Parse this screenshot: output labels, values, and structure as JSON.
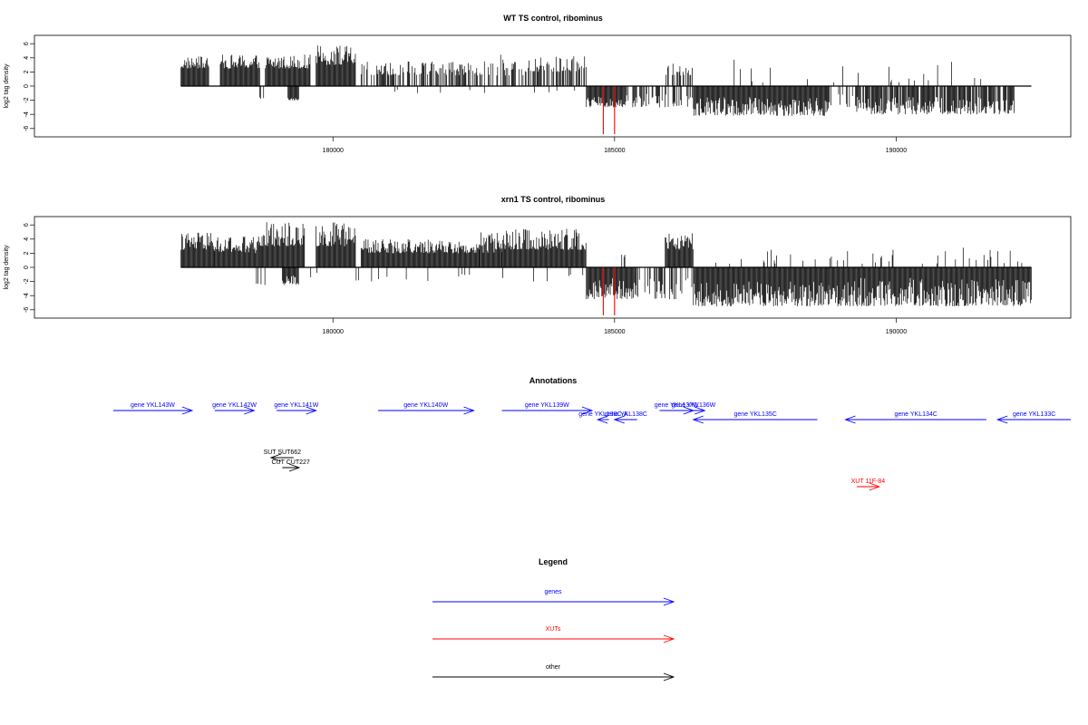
{
  "colors": {
    "genes": "#0000ff",
    "xuts": "#ff0000",
    "other": "#000000",
    "trace": "#000000",
    "highlight": "#ff0000"
  },
  "chart_data": [
    {
      "type": "bar",
      "title": "WT TS control, ribominus",
      "ylabel": "log2 tag density",
      "xticks": [
        180000,
        185000,
        190000
      ],
      "yticks": [
        -6,
        -4,
        -2,
        0,
        2,
        4,
        6
      ],
      "xlim": [
        174700,
        193100
      ],
      "ylim": [
        -7.5,
        7
      ],
      "grid": false,
      "positive_segments": [
        {
          "x": [
            177300,
            177800
          ],
          "y": [
            2.5,
            4.2
          ],
          "d": 1.2
        },
        {
          "x": [
            178000,
            178700
          ],
          "y": [
            2.5,
            4.5
          ],
          "d": 1.0
        },
        {
          "x": [
            178800,
            179600
          ],
          "y": [
            2.5,
            4.5
          ],
          "d": 1.0
        },
        {
          "x": [
            179700,
            180400
          ],
          "y": [
            3.0,
            5.8
          ],
          "d": 1.8
        },
        {
          "x": [
            180500,
            182800
          ],
          "y": [
            1.5,
            3.5
          ],
          "d": 0.6
        },
        {
          "x": [
            182800,
            183400
          ],
          "y": [
            1.5,
            4.8
          ],
          "d": 0.5
        },
        {
          "x": [
            183400,
            184500
          ],
          "y": [
            2.0,
            4.3
          ],
          "d": 0.6
        },
        {
          "x": [
            185900,
            186400
          ],
          "y": [
            1.5,
            3.2
          ],
          "d": 0.4
        },
        {
          "x": [
            187000,
            191600
          ],
          "y": [
            0.5,
            3.8
          ],
          "d": 0.05
        }
      ],
      "negative_segments": [
        {
          "x": [
            178700,
            178800
          ],
          "y": [
            -1.8,
            -1.5
          ],
          "d": 0.5
        },
        {
          "x": [
            179200,
            179400
          ],
          "y": [
            -2.0,
            -1.5
          ],
          "d": 1.0
        },
        {
          "x": [
            180500,
            184500
          ],
          "y": [
            -1.0,
            -0.5
          ],
          "d": 0.03
        },
        {
          "x": [
            184500,
            185200
          ],
          "y": [
            -3.0,
            -1.5
          ],
          "d": 1.0
        },
        {
          "x": [
            185200,
            186400
          ],
          "y": [
            -3.0,
            -1.0
          ],
          "d": 0.5
        },
        {
          "x": [
            186400,
            188800
          ],
          "y": [
            -4.2,
            -1.5
          ],
          "d": 1.0
        },
        {
          "x": [
            188800,
            189300
          ],
          "y": [
            -3.0,
            -1.0
          ],
          "d": 0.3
        },
        {
          "x": [
            189300,
            192100
          ],
          "y": [
            -4.0,
            -1.5
          ],
          "d": 0.8
        }
      ],
      "highlight_bars": [
        {
          "x": 184800,
          "y": -6.8
        },
        {
          "x": 185000,
          "y": -6.8
        }
      ],
      "baseline_x": [
        177300,
        192400
      ]
    },
    {
      "type": "bar",
      "title": "xrn1 TS control, ribominus",
      "ylabel": "log2 tag density",
      "xticks": [
        180000,
        185000,
        190000
      ],
      "yticks": [
        -6,
        -4,
        -2,
        0,
        2,
        4,
        6
      ],
      "xlim": [
        174700,
        193100
      ],
      "ylim": [
        -7.5,
        7
      ],
      "grid": false,
      "positive_segments": [
        {
          "x": [
            177300,
            177900
          ],
          "y": [
            2.5,
            5.0
          ],
          "d": 2.0
        },
        {
          "x": [
            177900,
            178700
          ],
          "y": [
            2.0,
            4.5
          ],
          "d": 1.0
        },
        {
          "x": [
            178700,
            179500
          ],
          "y": [
            3.0,
            6.5
          ],
          "d": 3.0
        },
        {
          "x": [
            179700,
            180400
          ],
          "y": [
            3.0,
            6.5
          ],
          "d": 3.0
        },
        {
          "x": [
            180500,
            182600
          ],
          "y": [
            2.0,
            4.0
          ],
          "d": 1.0
        },
        {
          "x": [
            182600,
            183000
          ],
          "y": [
            2.0,
            5.0
          ],
          "d": 2.0
        },
        {
          "x": [
            183000,
            184500
          ],
          "y": [
            2.5,
            5.5
          ],
          "d": 1.5
        },
        {
          "x": [
            185100,
            185200
          ],
          "y": [
            1.5,
            1.8
          ],
          "d": 0.3
        },
        {
          "x": [
            185900,
            186400
          ],
          "y": [
            2.5,
            5.0
          ],
          "d": 2.0
        },
        {
          "x": [
            186400,
            192300
          ],
          "y": [
            0.5,
            3.0
          ],
          "d": 0.1
        }
      ],
      "negative_segments": [
        {
          "x": [
            178600,
            178800
          ],
          "y": [
            -2.5,
            -2.0
          ],
          "d": 0.3
        },
        {
          "x": [
            179100,
            179400
          ],
          "y": [
            -2.5,
            -1.0
          ],
          "d": 1.5
        },
        {
          "x": [
            179400,
            184500
          ],
          "y": [
            -2.0,
            -0.5
          ],
          "d": 0.05
        },
        {
          "x": [
            184500,
            185400
          ],
          "y": [
            -4.5,
            -1.5
          ],
          "d": 2.0
        },
        {
          "x": [
            185400,
            186400
          ],
          "y": [
            -4.5,
            -1.5
          ],
          "d": 0.5
        },
        {
          "x": [
            186400,
            188800
          ],
          "y": [
            -5.5,
            -2.0
          ],
          "d": 3.0
        },
        {
          "x": [
            188800,
            192400
          ],
          "y": [
            -5.5,
            -1.5
          ],
          "d": 1.2
        }
      ],
      "highlight_bars": [
        {
          "x": 184800,
          "y": -6.8
        },
        {
          "x": 185000,
          "y": -6.8
        }
      ],
      "baseline_x": [
        177300,
        192400
      ]
    }
  ],
  "annotations": {
    "title": "Annotations",
    "items": [
      {
        "label": "gene YKL143W",
        "x0": 176100,
        "x1": 177500,
        "row": 0,
        "dir": 1,
        "kind": "gene"
      },
      {
        "label": "gene YKL142W",
        "x0": 177900,
        "x1": 178600,
        "row": 0,
        "dir": 1,
        "kind": "gene"
      },
      {
        "label": "gene YKL141W",
        "x0": 179000,
        "x1": 179700,
        "row": 0,
        "dir": 1,
        "kind": "gene"
      },
      {
        "label": "gene YKL140W",
        "x0": 180800,
        "x1": 182500,
        "row": 0,
        "dir": 1,
        "kind": "gene"
      },
      {
        "label": "gene YKL139W",
        "x0": 183000,
        "x1": 184600,
        "row": 0,
        "dir": 1,
        "kind": "gene"
      },
      {
        "label": "gene YKL138C-A",
        "x0": 184700,
        "x1": 184900,
        "row": 1,
        "dir": -1,
        "kind": "gene"
      },
      {
        "label": "gene YKL138C",
        "x0": 185000,
        "x1": 185400,
        "row": 1,
        "dir": -1,
        "kind": "gene"
      },
      {
        "label": "gene YKL137W",
        "x0": 185800,
        "x1": 186400,
        "row": 0,
        "dir": 1,
        "kind": "gene"
      },
      {
        "label": "gene YKL136W",
        "x0": 186200,
        "x1": 186600,
        "row": 0,
        "dir": 1,
        "kind": "gene"
      },
      {
        "label": "gene YKL135C",
        "x0": 186400,
        "x1": 188600,
        "row": 1,
        "dir": -1,
        "kind": "gene"
      },
      {
        "label": "gene YKL134C",
        "x0": 189100,
        "x1": 191600,
        "row": 1,
        "dir": -1,
        "kind": "gene"
      },
      {
        "label": "gene YKL133C",
        "x0": 191800,
        "x1": 193100,
        "row": 1,
        "dir": -1,
        "kind": "gene"
      },
      {
        "label": "SUT SUT662",
        "x0": 178900,
        "x1": 179300,
        "row": 2,
        "dir": -1,
        "kind": "other"
      },
      {
        "label": "CUT CUT227",
        "x0": 179100,
        "x1": 179400,
        "row": 3,
        "dir": 1,
        "kind": "other"
      },
      {
        "label": "XUT 11F-84",
        "x0": 189300,
        "x1": 189700,
        "row": 4,
        "dir": 1,
        "kind": "xut"
      }
    ]
  },
  "legend": {
    "title": "Legend",
    "items": [
      {
        "label": "genes",
        "kind": "gene"
      },
      {
        "label": "XUTs",
        "kind": "xut"
      },
      {
        "label": "other",
        "kind": "other"
      }
    ]
  }
}
